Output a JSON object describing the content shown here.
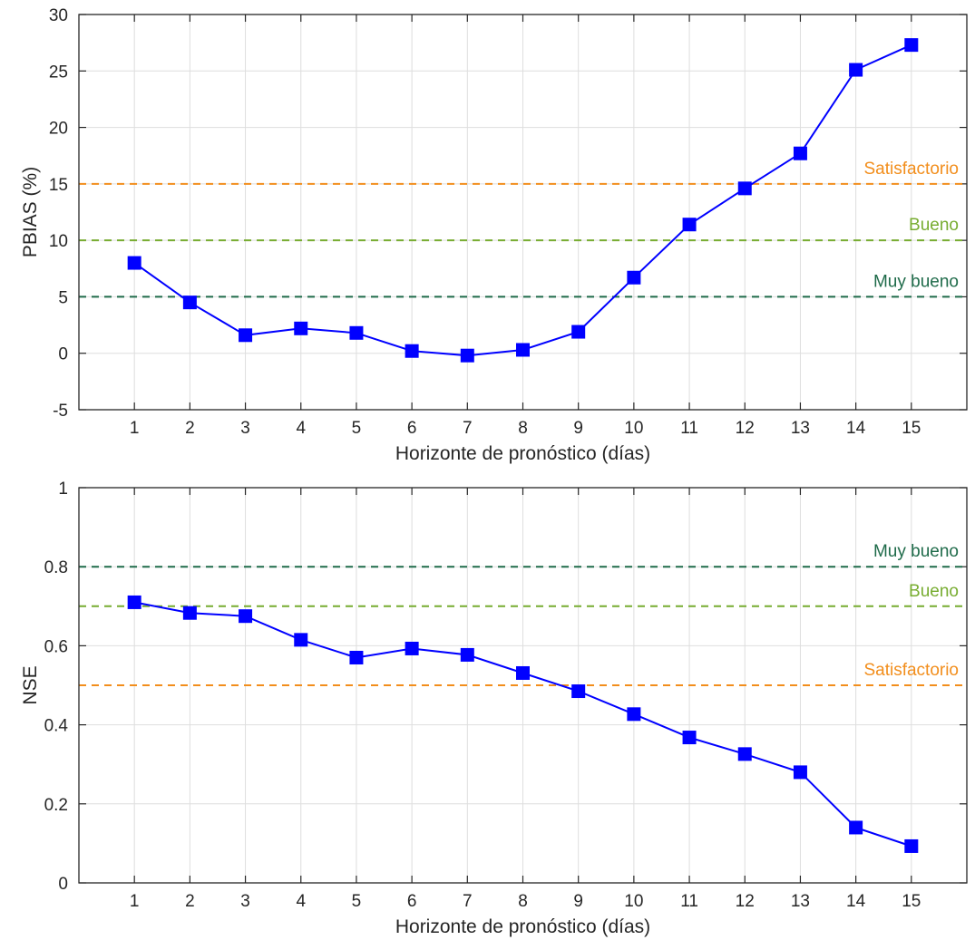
{
  "chart_data": [
    {
      "type": "line",
      "ylabel": "PBIAS (%)",
      "xlabel": "Horizonte de pronóstico (días)",
      "x": [
        1,
        2,
        3,
        4,
        5,
        6,
        7,
        8,
        9,
        10,
        11,
        12,
        13,
        14,
        15
      ],
      "xlim": [
        0,
        16
      ],
      "ylim": [
        -5,
        30
      ],
      "yticks": [
        -5,
        0,
        5,
        10,
        15,
        20,
        25,
        30
      ],
      "grid": true,
      "series": [
        {
          "values": [
            8.0,
            4.5,
            1.6,
            2.2,
            1.8,
            0.2,
            -0.2,
            0.3,
            1.9,
            6.7,
            11.4,
            14.6,
            17.7,
            25.1,
            27.3
          ],
          "color": "#0000ff",
          "marker": "square"
        }
      ],
      "reference_lines": [
        {
          "label": "Satisfactorio",
          "y": 15,
          "color": "#f28e1c"
        },
        {
          "label": "Bueno",
          "y": 10,
          "color": "#77ac30"
        },
        {
          "label": "Muy bueno",
          "y": 5,
          "color": "#1f6b4a"
        }
      ]
    },
    {
      "type": "line",
      "ylabel": "NSE",
      "xlabel": "Horizonte de pronóstico (días)",
      "x": [
        1,
        2,
        3,
        4,
        5,
        6,
        7,
        8,
        9,
        10,
        11,
        12,
        13,
        14,
        15
      ],
      "xlim": [
        0,
        16
      ],
      "ylim": [
        0,
        1
      ],
      "yticks": [
        0,
        0.2,
        0.4,
        0.6,
        0.8,
        1
      ],
      "grid": true,
      "series": [
        {
          "values": [
            0.71,
            0.683,
            0.675,
            0.615,
            0.57,
            0.593,
            0.577,
            0.531,
            0.485,
            0.427,
            0.368,
            0.326,
            0.28,
            0.14,
            0.093
          ],
          "color": "#0000ff",
          "marker": "square"
        }
      ],
      "reference_lines": [
        {
          "label": "Muy bueno",
          "y": 0.8,
          "color": "#1f6b4a"
        },
        {
          "label": "Bueno",
          "y": 0.7,
          "color": "#77ac30"
        },
        {
          "label": "Satisfactorio",
          "y": 0.5,
          "color": "#f28e1c"
        }
      ]
    }
  ]
}
